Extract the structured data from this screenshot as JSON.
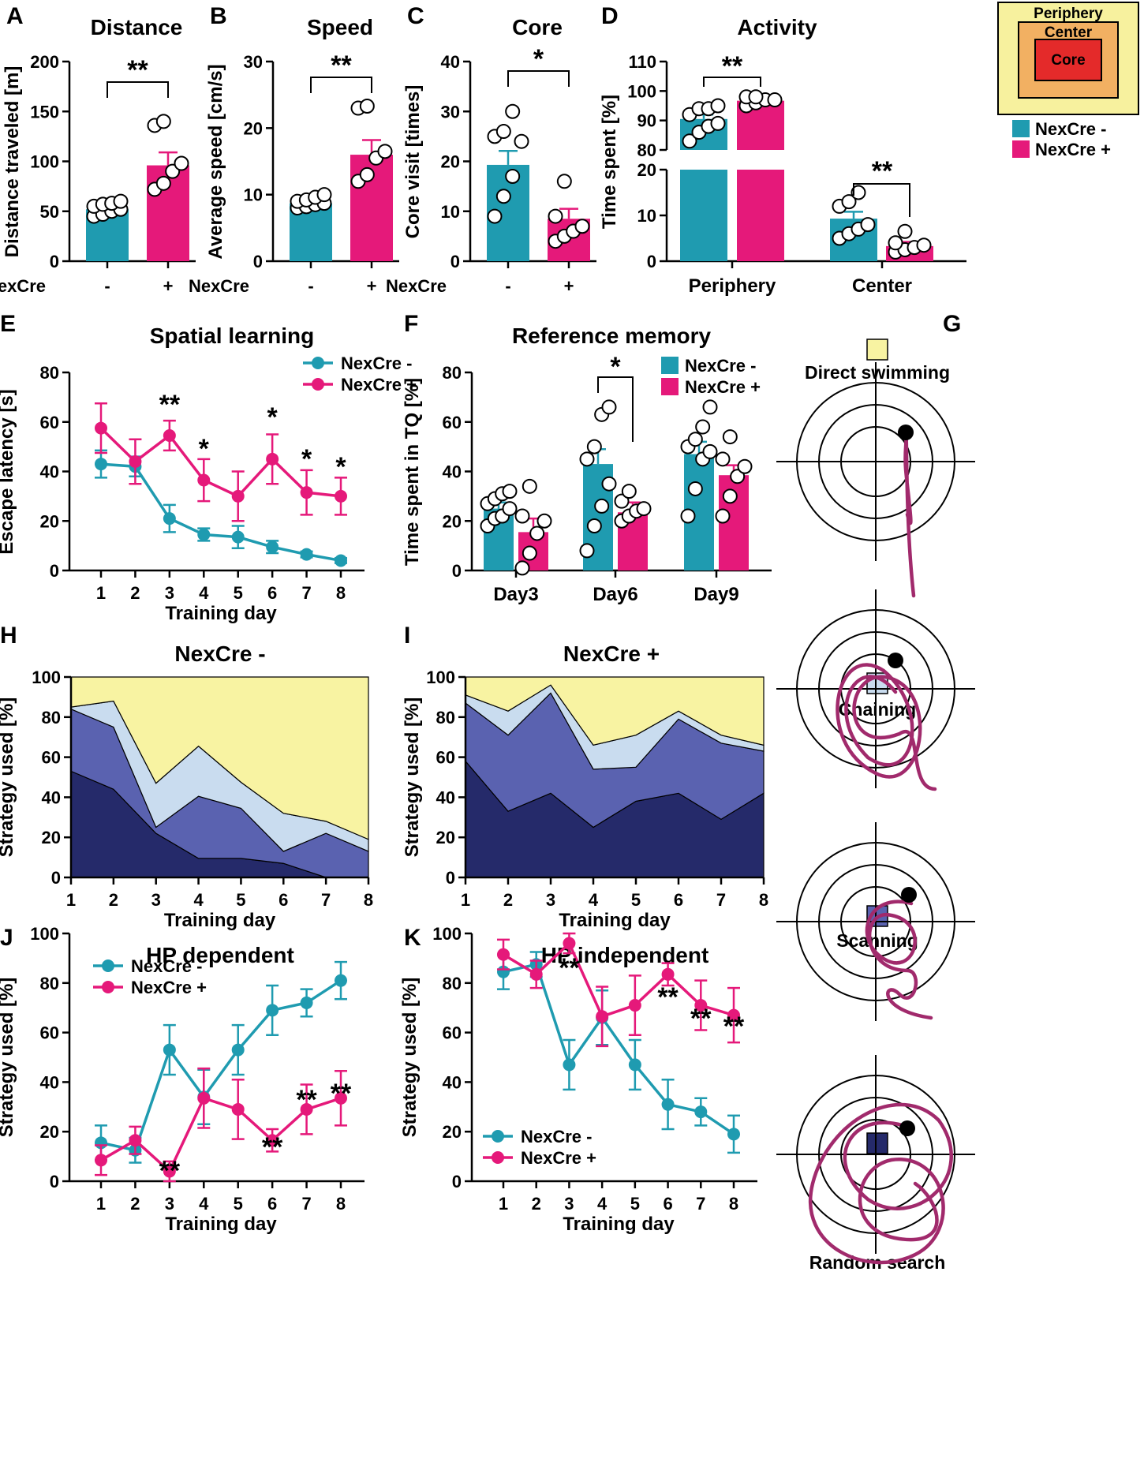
{
  "colors": {
    "minus": "#1f9bb0",
    "plus": "#e5197a",
    "periphery": "#f7f19e",
    "center": "#f2b062",
    "core": "#e42a2a",
    "direct": "#f8f3a2",
    "chaining": "#c9dcef",
    "scanning": "#5a62b0",
    "random": "#252a6a",
    "path": "#a12a6c"
  },
  "chart_data": [
    {
      "id": "A",
      "type": "bar",
      "title": "Distance",
      "ylabel": "Distance traveled [m]",
      "xgroup_label": "NexCre",
      "categories": [
        "-",
        "+"
      ],
      "values": [
        52,
        96
      ],
      "errors": [
        3,
        13
      ],
      "ylim": [
        0,
        200
      ],
      "yticks": [
        "0",
        "50",
        "100",
        "150",
        "200"
      ],
      "points": [
        [
          45,
          47,
          50,
          52,
          55,
          57,
          58,
          60
        ],
        [
          72,
          78,
          90,
          98,
          136,
          140
        ]
      ],
      "significance": "**"
    },
    {
      "id": "B",
      "type": "bar",
      "title": "Speed",
      "ylabel": "Average speed [cm/s]",
      "xgroup_label": "NexCre",
      "categories": [
        "-",
        "+"
      ],
      "values": [
        8.7,
        16
      ],
      "errors": [
        0.5,
        2.2
      ],
      "ylim": [
        0,
        30
      ],
      "yticks": [
        "0",
        "10",
        "20",
        "30"
      ],
      "points": [
        [
          8,
          8.2,
          8.5,
          8.7,
          9,
          9.2,
          9.6,
          10
        ],
        [
          12,
          13,
          15.5,
          16.5,
          23,
          23.3
        ]
      ],
      "significance": "**"
    },
    {
      "id": "C",
      "type": "bar",
      "title": "Core",
      "ylabel": "Core visit [times]",
      "xgroup_label": "NexCre",
      "categories": [
        "-",
        "+"
      ],
      "values": [
        19.3,
        8.5
      ],
      "errors": [
        2.8,
        2
      ],
      "ylim": [
        0,
        40
      ],
      "yticks": [
        "0",
        "10",
        "20",
        "30",
        "40"
      ],
      "points": [
        [
          9,
          13,
          17,
          24,
          25,
          26,
          30
        ],
        [
          4,
          5,
          6,
          7,
          9,
          16
        ]
      ],
      "significance": "*"
    },
    {
      "id": "D",
      "type": "bar",
      "title": "Activity",
      "ylabel": "Time spent [%]",
      "categories": [
        "Periphery",
        "Center"
      ],
      "series": [
        {
          "name": "NexCre -",
          "values": [
            90.5,
            9.3
          ],
          "errors": [
            1.5,
            1.5
          ],
          "points": [
            [
              83,
              86,
              88,
              89,
              92,
              94,
              94,
              95
            ],
            [
              5,
              6,
              7,
              8,
              12,
              13,
              15
            ]
          ]
        },
        {
          "name": "NexCre +",
          "values": [
            96.7,
            3.3
          ],
          "errors": [
            0.7,
            0.9
          ],
          "points": [
            [
              95,
              96,
              97,
              97,
              98,
              98
            ],
            [
              2,
              2.5,
              3,
              3.5,
              4,
              6.5
            ]
          ]
        }
      ],
      "yticks_upper": [
        "80",
        "90",
        "100",
        "110"
      ],
      "yticks_lower": [
        "0",
        "10",
        "20"
      ],
      "inset_labels": [
        "Periphery",
        "Center",
        "Core"
      ],
      "significance": [
        "**",
        "**"
      ]
    },
    {
      "id": "E",
      "type": "line",
      "title": "Spatial learning",
      "ylabel": "Escape latency [s]",
      "xlabel": "Training day",
      "x": [
        1,
        2,
        3,
        4,
        5,
        6,
        7,
        8
      ],
      "ylim": [
        0,
        80
      ],
      "yticks": [
        "0",
        "20",
        "40",
        "60",
        "80"
      ],
      "series": [
        {
          "name": "NexCre -",
          "values": [
            43,
            42,
            21,
            14.5,
            13.5,
            9.5,
            6.5,
            4
          ],
          "errors": [
            5.5,
            4,
            5.5,
            2.5,
            4.5,
            2.5,
            1.2,
            1
          ]
        },
        {
          "name": "NexCre +",
          "values": [
            57.5,
            44,
            54.5,
            36.5,
            30,
            45,
            31.5,
            30
          ],
          "errors": [
            10,
            9,
            6,
            8.5,
            10,
            10,
            9,
            7.5
          ]
        }
      ],
      "stars": [
        "",
        "",
        "**",
        "*",
        "",
        "*",
        "*",
        "*"
      ]
    },
    {
      "id": "F",
      "type": "bar",
      "title": "Reference memory",
      "ylabel": "Time spent in TQ [%]",
      "categories": [
        "Day3",
        "Day6",
        "Day9"
      ],
      "ylim": [
        0,
        80
      ],
      "yticks": [
        "0",
        "20",
        "40",
        "60",
        "80"
      ],
      "series": [
        {
          "name": "NexCre -",
          "values": [
            25,
            43,
            47
          ],
          "errors": [
            2.5,
            6,
            5
          ],
          "points": [
            [
              18,
              21,
              22,
              25,
              27,
              29,
              31,
              32
            ],
            [
              8,
              18,
              26,
              35,
              45,
              50,
              63,
              66
            ],
            [
              22,
              33,
              45,
              48,
              50,
              53,
              58,
              66
            ]
          ]
        },
        {
          "name": "NexCre +",
          "values": [
            15.5,
            23.5,
            38.5
          ],
          "errors": [
            5.5,
            4,
            4
          ],
          "points": [
            [
              1,
              7,
              15,
              20,
              22,
              34
            ],
            [
              20,
              22,
              24,
              25,
              28,
              32
            ],
            [
              22,
              30,
              38,
              42,
              45,
              54
            ]
          ]
        }
      ],
      "significance": "*"
    },
    {
      "id": "H",
      "type": "area",
      "title": "NexCre -",
      "ylabel": "Strategy used [%]",
      "xlabel": "Training day",
      "x": [
        1,
        2,
        3,
        4,
        5,
        6,
        7,
        8
      ],
      "ylim": [
        0,
        100
      ],
      "yticks": [
        "0",
        "20",
        "40",
        "60",
        "80",
        "100"
      ],
      "series": [
        {
          "name": "Random search",
          "values": [
            53,
            44,
            22,
            9.5,
            9.5,
            7,
            0,
            0
          ]
        },
        {
          "name": "Scanning",
          "values": [
            31,
            31,
            3,
            31,
            25,
            6,
            22,
            13
          ]
        },
        {
          "name": "Chaining",
          "values": [
            1,
            13,
            22,
            25,
            13,
            19,
            6,
            6
          ]
        },
        {
          "name": "Direct swimming",
          "values": [
            15,
            12,
            53,
            34.5,
            52.5,
            68,
            72,
            81
          ]
        }
      ]
    },
    {
      "id": "I",
      "type": "area",
      "title": "NexCre +",
      "ylabel": "Strategy used [%]",
      "xlabel": "Training day",
      "x": [
        1,
        2,
        3,
        4,
        5,
        6,
        7,
        8
      ],
      "ylim": [
        0,
        100
      ],
      "yticks": [
        "0",
        "20",
        "40",
        "60",
        "80",
        "100"
      ],
      "series": [
        {
          "name": "Random search",
          "values": [
            58,
            33,
            42,
            25,
            38,
            42,
            29,
            42
          ]
        },
        {
          "name": "Scanning",
          "values": [
            29,
            38,
            50,
            29,
            17,
            37,
            38,
            21
          ]
        },
        {
          "name": "Chaining",
          "values": [
            4,
            12,
            4,
            12,
            16,
            4,
            4,
            3
          ]
        },
        {
          "name": "Direct swimming",
          "values": [
            9,
            17,
            4,
            34,
            29,
            17,
            29,
            34
          ]
        }
      ]
    },
    {
      "id": "J",
      "type": "line",
      "title": "HP dependent",
      "ylabel": "Strategy used [%]",
      "xlabel": "Training day",
      "x": [
        1,
        2,
        3,
        4,
        5,
        6,
        7,
        8
      ],
      "ylim": [
        0,
        100
      ],
      "yticks": [
        "0",
        "20",
        "40",
        "60",
        "80",
        "100"
      ],
      "series": [
        {
          "name": "NexCre -",
          "values": [
            15.5,
            12.5,
            53,
            34,
            53,
            69,
            72,
            81
          ]
        },
        {
          "name": "NexCre +",
          "values": [
            8.5,
            16.5,
            4,
            33.5,
            29,
            16.5,
            29,
            33.5
          ]
        }
      ],
      "errors": [
        [
          7,
          5,
          10,
          11,
          10,
          10,
          5.5,
          7.5
        ],
        [
          6,
          5.5,
          4,
          12,
          12,
          4.5,
          10,
          11
        ]
      ],
      "stars": [
        "",
        "",
        "**",
        "",
        "",
        "**",
        "**",
        "**"
      ]
    },
    {
      "id": "K",
      "type": "line",
      "title": "HP independent",
      "ylabel": "Strategy used [%]",
      "xlabel": "Training day",
      "x": [
        1,
        2,
        3,
        4,
        5,
        6,
        7,
        8
      ],
      "ylim": [
        0,
        100
      ],
      "yticks": [
        "0",
        "20",
        "40",
        "60",
        "80",
        "100"
      ],
      "series": [
        {
          "name": "NexCre -",
          "values": [
            84.5,
            87.5,
            47,
            66,
            47,
            31,
            28,
            19
          ]
        },
        {
          "name": "NexCre +",
          "values": [
            91.5,
            83.5,
            96,
            66.5,
            71,
            83.5,
            71,
            67
          ]
        }
      ],
      "errors": [
        [
          7,
          5,
          10,
          11,
          10,
          10,
          5.5,
          7.5
        ],
        [
          6,
          5.5,
          4,
          12,
          12,
          4.5,
          10,
          11
        ]
      ],
      "stars": [
        "",
        "",
        "**",
        "",
        "",
        "**",
        "**",
        "**"
      ]
    }
  ],
  "strategies": [
    "Direct swimming",
    "Chaining",
    "Scanning",
    "Random search"
  ],
  "text": {
    "labels": {
      "A": "A",
      "B": "B",
      "C": "C",
      "D": "D",
      "E": "E",
      "F": "F",
      "G": "G",
      "H": "H",
      "I": "I",
      "J": "J",
      "K": "K"
    },
    "titles": {
      "A": "Distance",
      "B": "Speed",
      "C": "Core",
      "D": "Activity",
      "E": "Spatial learning",
      "F": "Reference memory",
      "H": "NexCre -",
      "I": "NexCre +",
      "J": "HP dependent",
      "K": "HP independent"
    },
    "ylabels": {
      "A": "Distance traveled [m]",
      "B": "Average speed [cm/s]",
      "C": "Core visit [times]",
      "D": "Time spent [%]",
      "E": "Escape latency [s]",
      "F": "Time spent in TQ [%]",
      "H": "Strategy used [%]",
      "I": "Strategy used [%]",
      "J": "Strategy used [%]",
      "K": "Strategy used [%]"
    },
    "xlabel": "Training day",
    "nexcre": "NexCre",
    "minus_sign": "-",
    "plus_sign": "+",
    "leg_minus": "NexCre -",
    "leg_plus": "NexCre +",
    "periphery_label": "Periphery",
    "center_label": "Center",
    "core_label": "Core",
    "d_cats": [
      "Periphery",
      "Center"
    ],
    "f_cats": [
      "Day3",
      "Day6",
      "Day9"
    ],
    "ticks_ABC": {
      "A": [
        "0",
        "50",
        "100",
        "150",
        "200"
      ],
      "B": [
        "0",
        "10",
        "20",
        "30"
      ],
      "C": [
        "0",
        "10",
        "20",
        "30",
        "40"
      ]
    },
    "ticks_D_upper": [
      "80",
      "90",
      "100",
      "110"
    ],
    "ticks_D_lower": [
      "0",
      "10",
      "20"
    ],
    "ticks_80": [
      "0",
      "20",
      "40",
      "60",
      "80"
    ],
    "ticks_100": [
      "0",
      "20",
      "40",
      "60",
      "80",
      "100"
    ],
    "days": [
      "1",
      "2",
      "3",
      "4",
      "5",
      "6",
      "7",
      "8"
    ],
    "star2": "**",
    "star1": "*"
  }
}
